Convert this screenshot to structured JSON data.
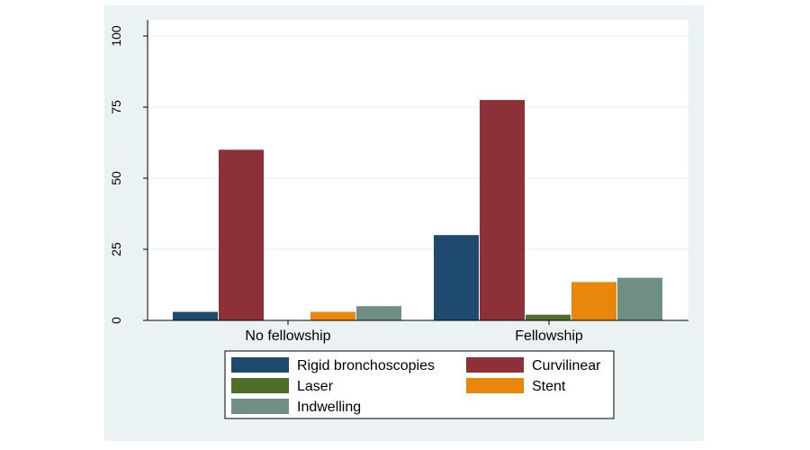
{
  "chart_data": {
    "type": "bar",
    "title": "",
    "xlabel": "",
    "ylabel": "",
    "ylim": [
      0,
      100
    ],
    "yticks": [
      0,
      25,
      50,
      75,
      100
    ],
    "grid": true,
    "legend_position": "bottom",
    "categories": [
      "No fellowship",
      "Fellowship"
    ],
    "series": [
      {
        "name": "Rigid bronchoscopies",
        "color": "#1f4a70",
        "values": [
          3,
          30
        ]
      },
      {
        "name": "Curvilinear",
        "color": "#8e3038",
        "values": [
          60,
          77.5
        ]
      },
      {
        "name": "Laser",
        "color": "#4f6d2a",
        "values": [
          0,
          2
        ]
      },
      {
        "name": "Stent",
        "color": "#e8870b",
        "values": [
          3,
          13.5
        ]
      },
      {
        "name": "Indwelling",
        "color": "#6f8f84",
        "values": [
          5,
          15
        ]
      }
    ]
  }
}
